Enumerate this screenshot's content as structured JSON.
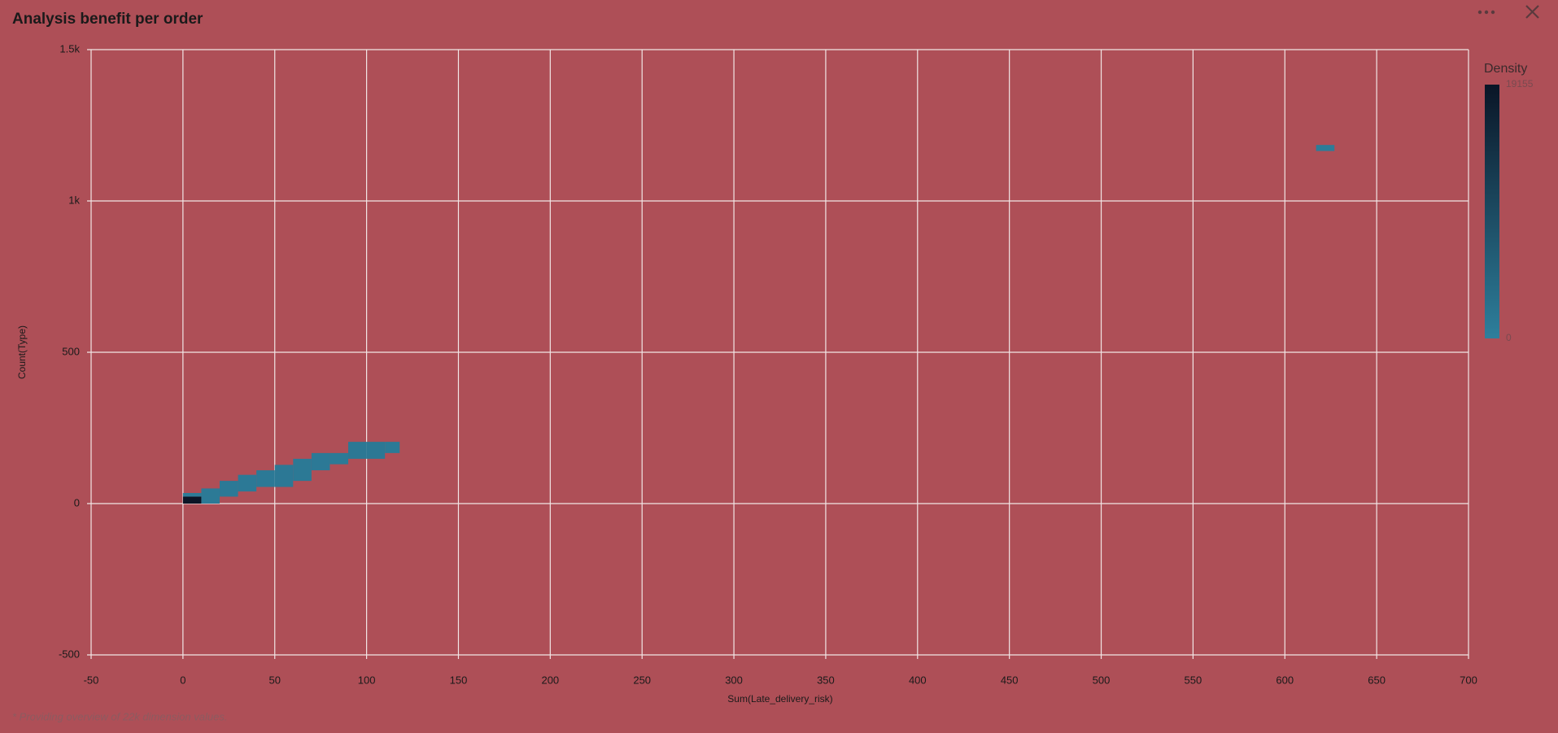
{
  "chart_data": {
    "type": "density-heatmap",
    "title": "Analysis benefit per order",
    "x_label": "Sum(Late_delivery_risk)",
    "y_label": "Count(Type)",
    "footnote": "* Providing overview of 22k dimension values.",
    "colorbar_title": "Density",
    "colorbar_range": [
      0,
      19155
    ],
    "colorbar_ticks": [
      0,
      19155
    ],
    "colorscale": [
      "#2e7f9c",
      "#0a1526"
    ],
    "x0": [
      0,
      0,
      10,
      20,
      30,
      40,
      50,
      60,
      70,
      80,
      90,
      100,
      110,
      617
    ],
    "x1": [
      10,
      10,
      20,
      30,
      40,
      50,
      60,
      70,
      80,
      90,
      100,
      110,
      118,
      627
    ],
    "y0": [
      0,
      23,
      0,
      23,
      40,
      55,
      55,
      75,
      110,
      130,
      148,
      148,
      167,
      1165
    ],
    "y1": [
      23,
      35,
      50,
      75,
      95,
      110,
      128,
      148,
      167,
      167,
      204,
      204,
      204,
      1185
    ],
    "values": [
      19155,
      800,
      900,
      1000,
      1000,
      1000,
      1200,
      1100,
      1000,
      900,
      1300,
      1300,
      900,
      600
    ],
    "xlim": [
      -50,
      700
    ],
    "xticks": [
      -50,
      0,
      50,
      100,
      150,
      200,
      250,
      300,
      350,
      400,
      450,
      500,
      550,
      600,
      650,
      700
    ],
    "ylim": [
      -500,
      1500
    ],
    "yticks": [
      -500,
      0,
      500,
      {
        "value": 1000,
        "label": "1k"
      },
      {
        "value": 1500,
        "label": "1.5k"
      }
    ],
    "grid": true
  }
}
